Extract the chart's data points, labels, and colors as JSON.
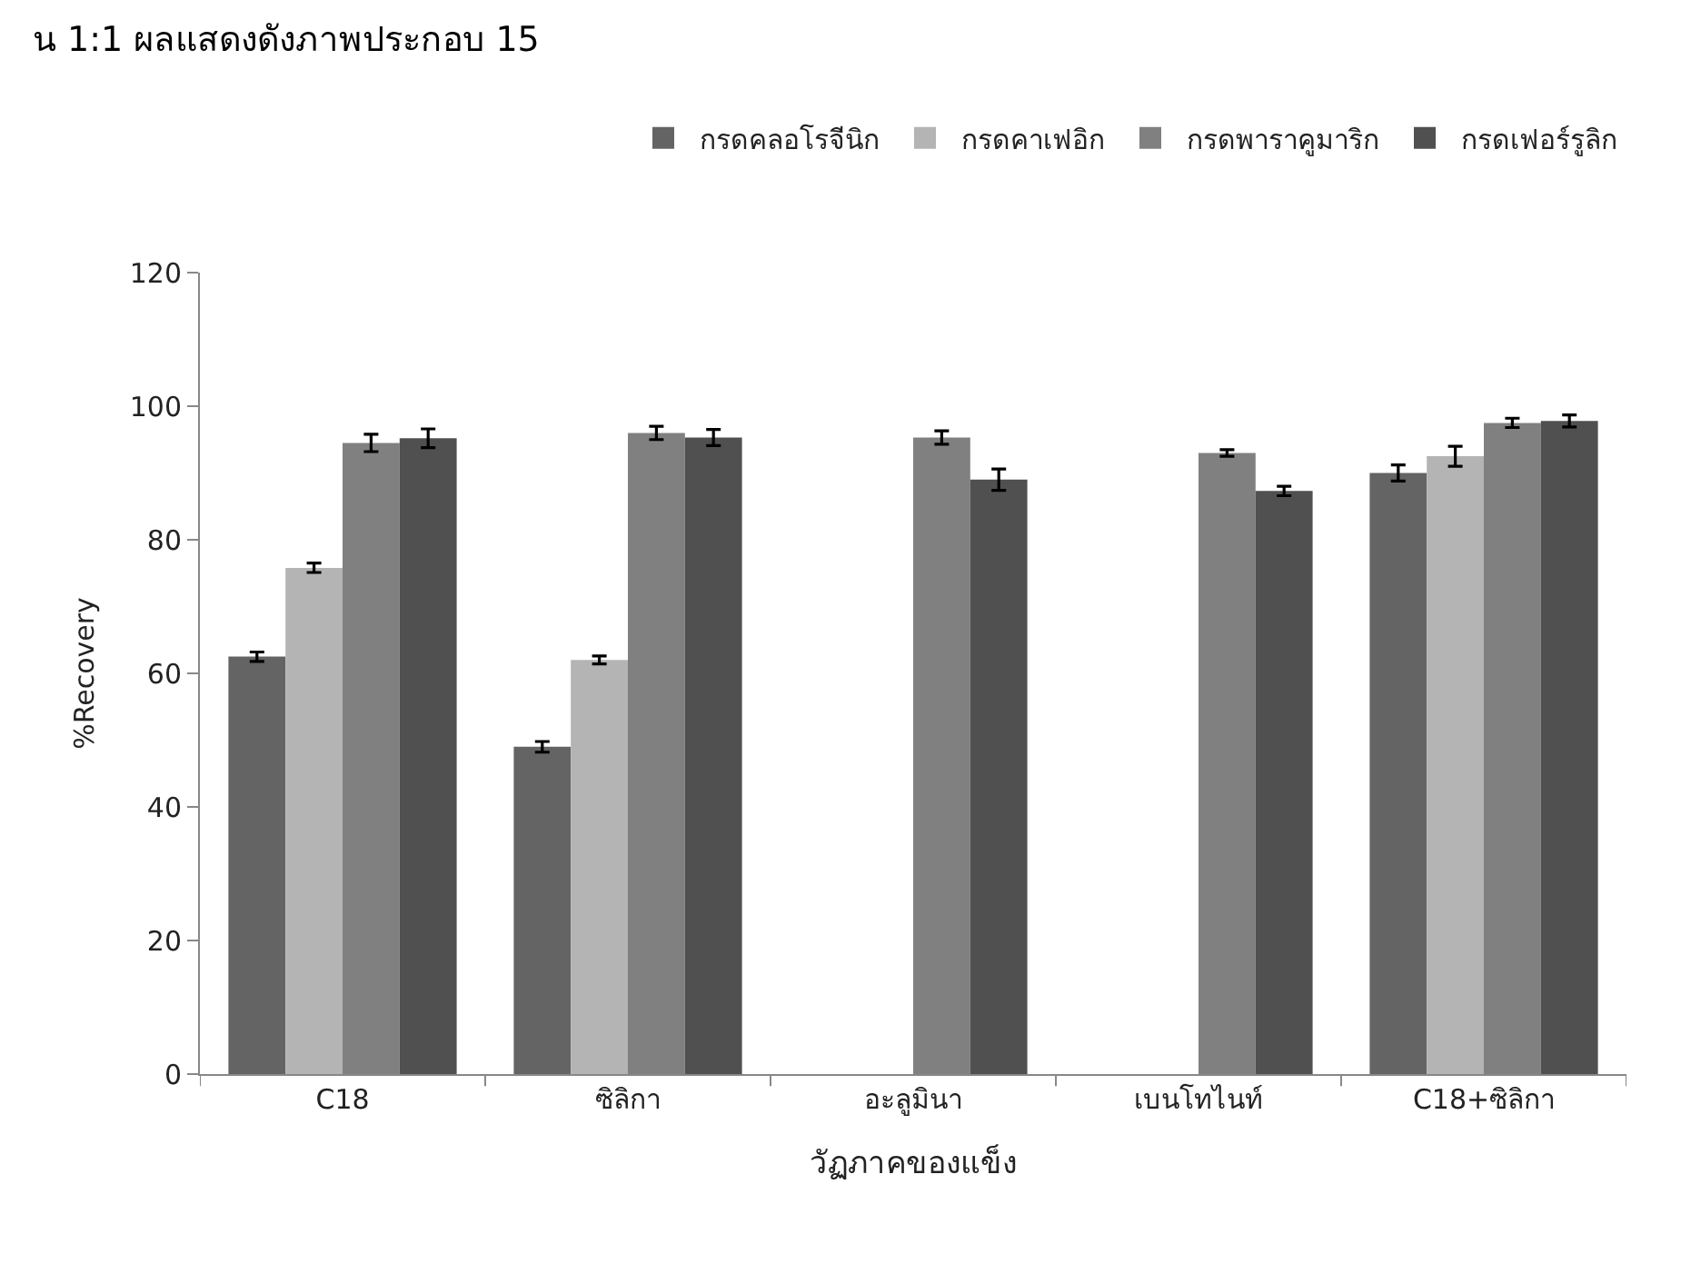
{
  "chart_data": {
    "type": "bar",
    "annotations": [
      "น 1:1 ผลแสดงดังภาพประกอบ 15"
    ],
    "xlabel": "วัฏภาคของแข็ง",
    "ylabel": "%Recovery",
    "categories": [
      "C18",
      "ซิลิกา",
      "อะลูมินา",
      "เบนโทไนท์",
      "C18+ซิลิกา"
    ],
    "series": [
      {
        "name": "กรดคลอโรจีนิก",
        "color": "#646464",
        "values": [
          62.5,
          49,
          null,
          null,
          90
        ],
        "errors": [
          0.7,
          0.8,
          null,
          null,
          1.2
        ]
      },
      {
        "name": "กรดคาเฟอิก",
        "color": "#b4b4b4",
        "values": [
          75.8,
          62,
          null,
          null,
          92.5
        ],
        "errors": [
          0.7,
          0.6,
          null,
          null,
          1.5
        ]
      },
      {
        "name": "กรดพาราคูมาริก",
        "color": "#808080",
        "values": [
          94.5,
          96,
          95.3,
          93,
          97.5
        ],
        "errors": [
          1.3,
          1.0,
          1.0,
          0.5,
          0.7
        ]
      },
      {
        "name": "กรดเฟอร์รูลิก",
        "color": "#505050",
        "values": [
          95.2,
          95.3,
          89,
          87.3,
          97.8
        ],
        "errors": [
          1.4,
          1.2,
          1.6,
          0.7,
          0.9
        ]
      }
    ],
    "ylim": [
      0,
      120
    ],
    "yticks": [
      0,
      20,
      40,
      60,
      80,
      100,
      120
    ],
    "legend": "top right"
  }
}
